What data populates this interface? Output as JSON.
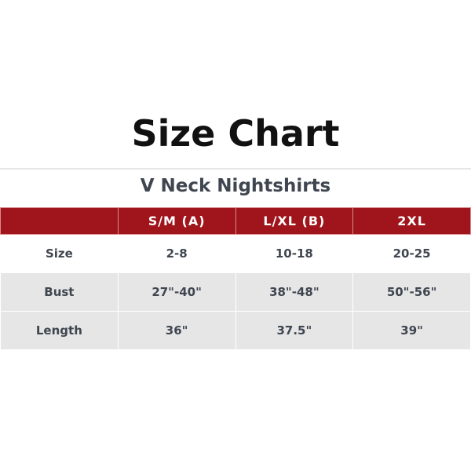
{
  "title": "Size Chart",
  "subtitle": "V Neck Nightshirts",
  "colors": {
    "header_bg": "#a0151b",
    "row_alt": "#e6e6e6"
  },
  "table": {
    "headers": [
      "",
      "S/M (A)",
      "L/XL (B)",
      "2XL"
    ],
    "rows": [
      [
        "Size",
        "2-8",
        "10-18",
        "20-25"
      ],
      [
        "Bust",
        "27\"-40\"",
        "38\"-48\"",
        "50\"-56\""
      ],
      [
        "Length",
        "36\"",
        "37.5\"",
        "39\""
      ]
    ]
  }
}
